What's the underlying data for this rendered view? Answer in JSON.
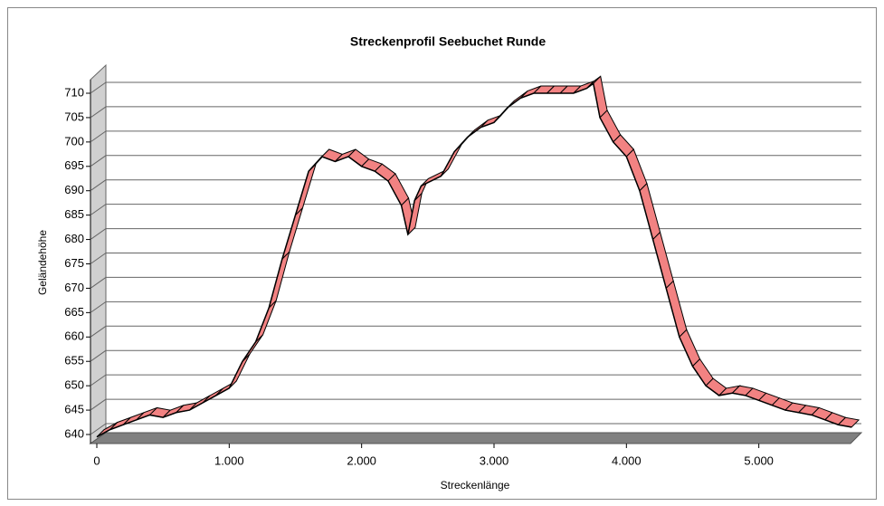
{
  "chart_data": {
    "type": "line3d",
    "title": "Streckenprofil Seebuchet Runde",
    "x_label": "Streckenlänge",
    "y_label": "Geländehöhe",
    "x": [
      0,
      100,
      200,
      300,
      400,
      500,
      600,
      700,
      800,
      900,
      1000,
      1100,
      1200,
      1300,
      1400,
      1500,
      1600,
      1700,
      1800,
      1900,
      2000,
      2100,
      2200,
      2300,
      2350,
      2400,
      2450,
      2600,
      2700,
      2800,
      2900,
      3000,
      3100,
      3200,
      3300,
      3400,
      3500,
      3600,
      3700,
      3750,
      3800,
      3900,
      4000,
      4100,
      4200,
      4300,
      4400,
      4500,
      4600,
      4700,
      4800,
      4900,
      5000,
      5100,
      5200,
      5300,
      5400,
      5500,
      5600,
      5700
    ],
    "series": [
      {
        "name": "Geländehöhe",
        "color": "#f28282",
        "values": [
          639.5,
          641,
          642,
          643,
          644,
          643.5,
          644.5,
          645,
          646.5,
          648,
          649.5,
          655,
          659,
          666,
          676,
          685,
          694,
          697,
          696,
          697,
          695,
          694,
          692,
          687,
          681,
          688,
          691,
          693,
          698,
          701,
          703,
          704,
          707,
          709,
          710,
          710,
          710,
          710,
          711,
          712,
          705,
          700,
          697,
          690,
          680,
          670,
          660,
          654,
          650,
          648,
          648.5,
          648,
          647,
          646,
          645,
          644.5,
          644,
          643,
          642,
          641.5
        ]
      }
    ],
    "xlim": [
      0,
      5750
    ],
    "ylim": [
      640,
      710
    ],
    "xticks": [
      0,
      {
        "value": 1000,
        "label": "1.000"
      },
      {
        "value": 2000,
        "label": "2.000"
      },
      {
        "value": 3000,
        "label": "3.000"
      },
      {
        "value": 4000,
        "label": "4.000"
      },
      {
        "value": 5000,
        "label": "5.000"
      }
    ],
    "yticks": [
      640,
      645,
      650,
      655,
      660,
      665,
      670,
      675,
      680,
      685,
      690,
      695,
      700,
      705,
      710
    ],
    "grid": true
  }
}
